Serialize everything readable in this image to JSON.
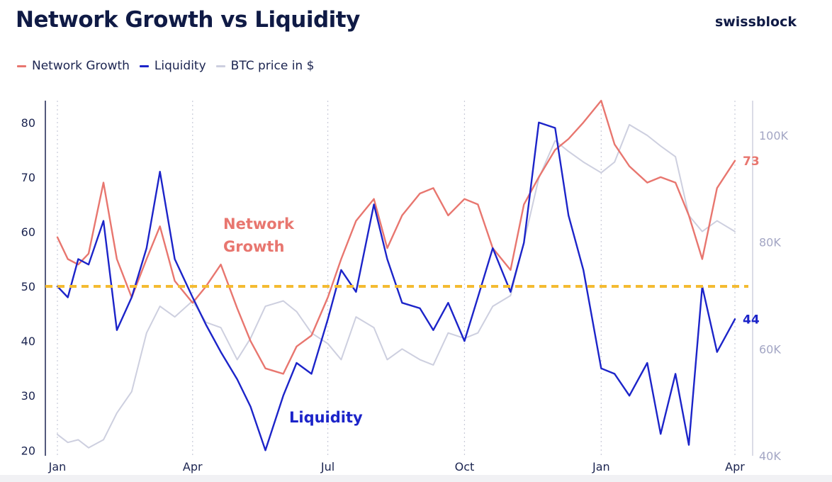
{
  "header": {
    "title": "Network Growth vs Liquidity",
    "brand": "swissblock"
  },
  "legend": [
    {
      "label": "Network Growth",
      "color": "#e8766f"
    },
    {
      "label": "Liquidity",
      "color": "#1c24c9"
    },
    {
      "label": "BTC price in $",
      "color": "#cdcfdf"
    }
  ],
  "annotations": {
    "network_growth": [
      "Network",
      "Growth"
    ],
    "liquidity": "Liquidity"
  },
  "chart_data": {
    "type": "line",
    "title": "Network Growth vs Liquidity",
    "x_ticks": [
      "Jan",
      "Apr",
      "Jul",
      "Oct",
      "Jan",
      "Apr"
    ],
    "x_tick_dates": [
      "2024-01-01",
      "2024-04-01",
      "2024-07-01",
      "2024-10-01",
      "2025-01-01",
      "2025-04-01"
    ],
    "y_left": {
      "ticks": [
        20,
        30,
        40,
        50,
        60,
        70,
        80
      ],
      "range": [
        19,
        84
      ]
    },
    "y_right": {
      "ticks": [
        "40K",
        "60K",
        "80K",
        "100K"
      ],
      "tick_values": [
        40000,
        60000,
        80000,
        100000
      ],
      "range": [
        40000,
        106500
      ]
    },
    "reference_line": {
      "value": 50,
      "color": "#f4bb32",
      "style": "dashed"
    },
    "end_labels": {
      "network_growth": "73",
      "liquidity": "44"
    },
    "grid": "vertical dotted at month ticks",
    "series": [
      {
        "name": "Network Growth",
        "color": "#e8766f",
        "axis": "left",
        "x": [
          "2024-01-01",
          "2024-01-08",
          "2024-01-15",
          "2024-01-22",
          "2024-02-01",
          "2024-02-10",
          "2024-02-20",
          "2024-03-01",
          "2024-03-10",
          "2024-03-20",
          "2024-04-01",
          "2024-04-10",
          "2024-04-20",
          "2024-05-01",
          "2024-05-10",
          "2024-05-20",
          "2024-06-01",
          "2024-06-10",
          "2024-06-20",
          "2024-07-01",
          "2024-07-10",
          "2024-07-20",
          "2024-08-01",
          "2024-08-10",
          "2024-08-20",
          "2024-09-01",
          "2024-09-10",
          "2024-09-20",
          "2024-10-01",
          "2024-10-10",
          "2024-10-20",
          "2024-11-01",
          "2024-11-10",
          "2024-11-20",
          "2024-12-01",
          "2024-12-10",
          "2024-12-20",
          "2025-01-01",
          "2025-01-10",
          "2025-01-20",
          "2025-02-01",
          "2025-02-10",
          "2025-02-20",
          "2025-03-01",
          "2025-03-10",
          "2025-03-20",
          "2025-04-01"
        ],
        "y": [
          59,
          55,
          54,
          56,
          69,
          55,
          48,
          55,
          61,
          51,
          47,
          50,
          54,
          46,
          40,
          35,
          34,
          39,
          41,
          48,
          55,
          62,
          66,
          57,
          63,
          67,
          68,
          63,
          66,
          65,
          57,
          53,
          65,
          70,
          75,
          77,
          80,
          84,
          76,
          72,
          69,
          70,
          69,
          63,
          55,
          68,
          73
        ]
      },
      {
        "name": "Liquidity",
        "color": "#1c24c9",
        "axis": "left",
        "x": [
          "2024-01-01",
          "2024-01-08",
          "2024-01-15",
          "2024-01-22",
          "2024-02-01",
          "2024-02-10",
          "2024-02-20",
          "2024-03-01",
          "2024-03-10",
          "2024-03-20",
          "2024-04-01",
          "2024-04-10",
          "2024-04-20",
          "2024-05-01",
          "2024-05-10",
          "2024-05-20",
          "2024-06-01",
          "2024-06-10",
          "2024-06-20",
          "2024-07-01",
          "2024-07-10",
          "2024-07-20",
          "2024-08-01",
          "2024-08-10",
          "2024-08-20",
          "2024-09-01",
          "2024-09-10",
          "2024-09-20",
          "2024-10-01",
          "2024-10-10",
          "2024-10-20",
          "2024-11-01",
          "2024-11-10",
          "2024-11-20",
          "2024-12-01",
          "2024-12-10",
          "2024-12-20",
          "2025-01-01",
          "2025-01-10",
          "2025-01-20",
          "2025-02-01",
          "2025-02-10",
          "2025-02-20",
          "2025-03-01",
          "2025-03-10",
          "2025-03-20",
          "2025-04-01"
        ],
        "y": [
          50,
          48,
          55,
          54,
          62,
          42,
          48,
          57,
          71,
          55,
          48,
          43,
          38,
          33,
          28,
          20,
          30,
          36,
          34,
          44,
          53,
          49,
          65,
          55,
          47,
          46,
          42,
          47,
          40,
          48,
          57,
          49,
          58,
          80,
          79,
          63,
          53,
          35,
          34,
          30,
          36,
          23,
          34,
          21,
          50,
          38,
          44
        ]
      },
      {
        "name": "BTC price in $",
        "color": "#cdcfdf",
        "axis": "right",
        "x": [
          "2024-01-01",
          "2024-01-08",
          "2024-01-15",
          "2024-01-22",
          "2024-02-01",
          "2024-02-10",
          "2024-02-20",
          "2024-03-01",
          "2024-03-10",
          "2024-03-20",
          "2024-04-01",
          "2024-04-10",
          "2024-04-20",
          "2024-05-01",
          "2024-05-10",
          "2024-05-20",
          "2024-06-01",
          "2024-06-10",
          "2024-06-20",
          "2024-07-01",
          "2024-07-10",
          "2024-07-20",
          "2024-08-01",
          "2024-08-10",
          "2024-08-20",
          "2024-09-01",
          "2024-09-10",
          "2024-09-20",
          "2024-10-01",
          "2024-10-10",
          "2024-10-20",
          "2024-11-01",
          "2024-11-10",
          "2024-11-20",
          "2024-12-01",
          "2024-12-10",
          "2024-12-20",
          "2025-01-01",
          "2025-01-10",
          "2025-01-20",
          "2025-02-01",
          "2025-02-10",
          "2025-02-20",
          "2025-03-01",
          "2025-03-10",
          "2025-03-20",
          "2025-04-01"
        ],
        "y": [
          44000,
          42500,
          43000,
          41500,
          43000,
          48000,
          52000,
          63000,
          68000,
          66000,
          69000,
          65000,
          64000,
          58000,
          62000,
          68000,
          69000,
          67000,
          63000,
          61000,
          58000,
          66000,
          64000,
          58000,
          60000,
          58000,
          57000,
          63000,
          62000,
          63000,
          68000,
          70000,
          80000,
          92000,
          99000,
          97000,
          95000,
          93000,
          95000,
          102000,
          100000,
          98000,
          96000,
          85000,
          82000,
          84000,
          82000
        ]
      }
    ]
  }
}
